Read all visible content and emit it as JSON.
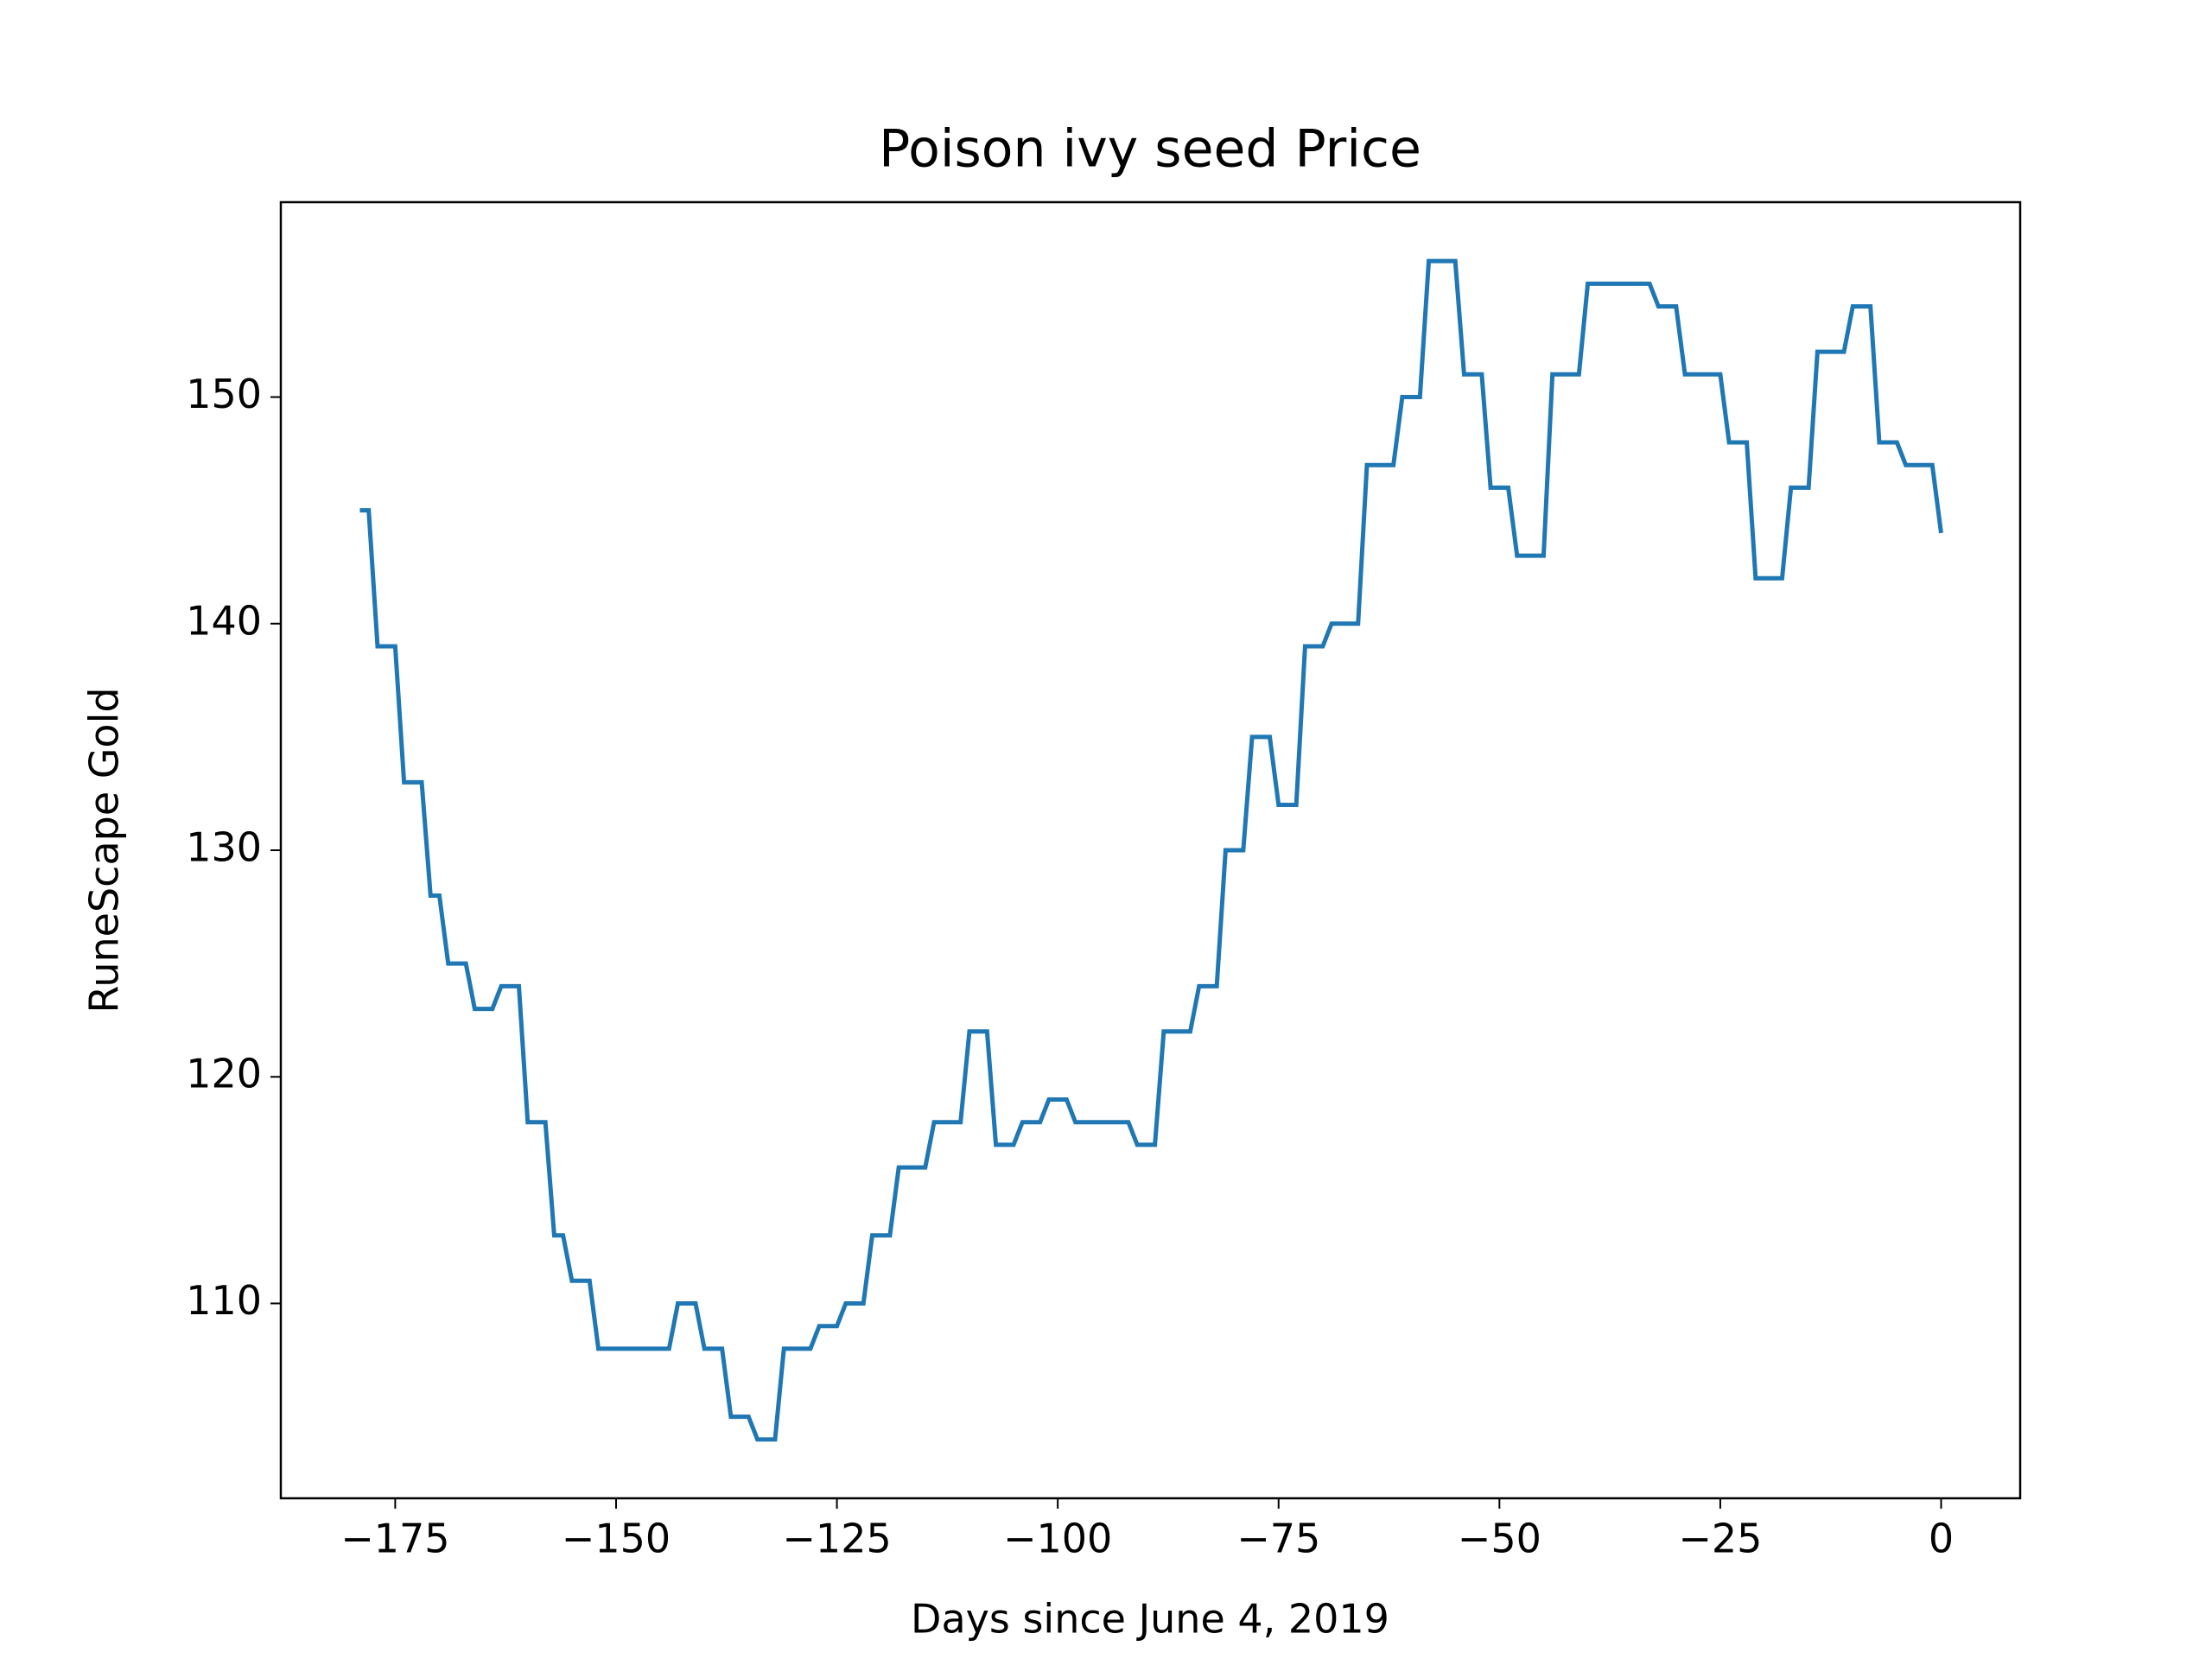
{
  "chart_data": {
    "type": "line",
    "title": "Poison ivy seed Price",
    "x_label": "Days since June 4, 2019",
    "y_label": "RuneScape Gold",
    "color": "#1f77b4",
    "x": [
      -179,
      -178,
      -177,
      -175,
      -174,
      -172,
      -171,
      -170,
      -169,
      -167,
      -166,
      -164,
      -163,
      -161,
      -160,
      -158,
      -157,
      -156,
      -155,
      -153,
      -152,
      -144,
      -143,
      -141,
      -140,
      -138,
      -137,
      -135,
      -134,
      -132,
      -131,
      -128,
      -127,
      -125,
      -124,
      -122,
      -121,
      -119,
      -118,
      -115,
      -114,
      -111,
      -110,
      -108,
      -107,
      -105,
      -104,
      -102,
      -101,
      -99,
      -98,
      -92,
      -91,
      -89,
      -88,
      -85,
      -84,
      -82,
      -81,
      -79,
      -78,
      -76,
      -75,
      -73,
      -72,
      -70,
      -69,
      -66,
      -65,
      -62,
      -61,
      -59,
      -58,
      -55,
      -54,
      -52,
      -51,
      -49,
      -48,
      -45,
      -44,
      -41,
      -40,
      -33,
      -32,
      -30,
      -29,
      -25,
      -24,
      -22,
      -21,
      -18,
      -17,
      -15,
      -14,
      -11,
      -10,
      -8,
      -7,
      -5,
      -4,
      -1,
      0
    ],
    "values": [
      145,
      145,
      139,
      139,
      133,
      133,
      128,
      128,
      125,
      125,
      123,
      123,
      124,
      124,
      118,
      118,
      113,
      113,
      111,
      111,
      108,
      108,
      110,
      110,
      108,
      108,
      105,
      105,
      104,
      104,
      108,
      108,
      109,
      109,
      110,
      110,
      113,
      113,
      116,
      116,
      118,
      118,
      122,
      122,
      117,
      117,
      118,
      118,
      119,
      119,
      118,
      118,
      117,
      117,
      122,
      122,
      124,
      124,
      130,
      130,
      135,
      135,
      132,
      132,
      139,
      139,
      140,
      140,
      147,
      147,
      150,
      150,
      156,
      156,
      151,
      151,
      146,
      146,
      143,
      143,
      151,
      151,
      155,
      155,
      154,
      154,
      151,
      151,
      148,
      148,
      142,
      142,
      146,
      146,
      152,
      152,
      154,
      154,
      148,
      148,
      147,
      147,
      144
    ],
    "xlim": [
      -187.95,
      8.95
    ],
    "ylim": [
      101.4,
      158.6
    ],
    "xticks": [
      {
        "value": -175,
        "label": "−175"
      },
      {
        "value": -150,
        "label": "−150"
      },
      {
        "value": -125,
        "label": "−125"
      },
      {
        "value": -100,
        "label": "−100"
      },
      {
        "value": -75,
        "label": "−75"
      },
      {
        "value": -50,
        "label": "−50"
      },
      {
        "value": -25,
        "label": "−25"
      },
      0
    ],
    "yticks": [
      110,
      120,
      130,
      140,
      150
    ],
    "grid": false
  }
}
